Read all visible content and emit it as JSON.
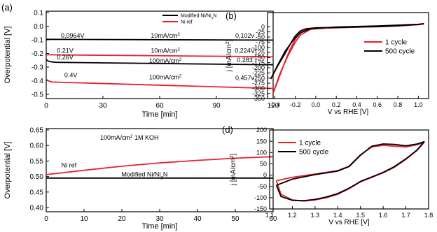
{
  "panel_labels": {
    "a": "(a)",
    "b": "(b)",
    "d": "(d)"
  },
  "chart_data": [
    {
      "panel": "a-top",
      "type": "line",
      "xlabel": "Time [min]",
      "ylabel": "Overpotential [V]",
      "xlim": [
        0,
        120
      ],
      "ylim": [
        -0.5,
        0.1
      ],
      "xticks": [
        "0",
        "30",
        "60",
        "90",
        "120"
      ],
      "yticks": [
        "0.1",
        "0.0",
        "-0.1",
        "-0.2",
        "-0.3",
        "-0.4",
        "-0.5"
      ],
      "legend": {
        "position": "top-right",
        "entries": [
          {
            "name": "Modified Ni/Ni3N",
            "color": "#000000"
          },
          {
            "name": "Ni ref",
            "color": "#e8202a"
          }
        ]
      },
      "series": [
        {
          "name": "Modified Ni/Ni3N",
          "color": "#000000",
          "x": [
            0,
            120
          ],
          "y": [
            -0.0964,
            -0.102
          ]
        },
        {
          "name": "Ni ref",
          "color": "#e8202a",
          "x": [
            0,
            120
          ],
          "y": [
            -0.21,
            -0.224
          ]
        },
        {
          "name": "Modified Ni/Ni3N",
          "color": "#000000",
          "x": [
            0,
            1,
            2,
            5,
            120
          ],
          "y": [
            -0.245,
            -0.255,
            -0.26,
            -0.265,
            -0.283
          ]
        },
        {
          "name": "Ni ref",
          "color": "#e8202a",
          "x": [
            0,
            1,
            3,
            120
          ],
          "y": [
            -0.39,
            -0.4,
            -0.41,
            -0.457
          ]
        }
      ],
      "annotations": [
        {
          "text": "0,0964V",
          "x": 14,
          "y": -0.085
        },
        {
          "text": "10mA/cm2",
          "x": 63,
          "y": -0.085
        },
        {
          "text": "0,102v",
          "x": 105,
          "y": -0.085
        },
        {
          "text": "0.21V",
          "x": 10,
          "y": -0.195
        },
        {
          "text": "10mA/cm2",
          "x": 63,
          "y": -0.195
        },
        {
          "text": "0,224V",
          "x": 105,
          "y": -0.195
        },
        {
          "text": "0.26V",
          "x": 10,
          "y": -0.244
        },
        {
          "text": "100mA/cm2",
          "x": 63,
          "y": -0.268
        },
        {
          "text": "0.283",
          "x": 105,
          "y": -0.265
        },
        {
          "text": "0.4V",
          "x": 13,
          "y": -0.375
        },
        {
          "text": "100mA/cm2",
          "x": 63,
          "y": -0.39
        },
        {
          "text": "0,457v",
          "x": 105,
          "y": -0.395
        }
      ]
    },
    {
      "panel": "a-bottom",
      "type": "line",
      "xlabel": "Time [min]",
      "ylabel": "Overpotential [V]",
      "xlim": [
        0,
        60
      ],
      "ylim": [
        0.4,
        0.65
      ],
      "xticks": [
        "0",
        "10",
        "20",
        "30",
        "40",
        "50",
        "60"
      ],
      "yticks": [
        "0.65",
        "0.60",
        "0.55",
        "0.50",
        "0.45",
        "0.40"
      ],
      "series": [
        {
          "name": "Ni ref",
          "color": "#e8202a",
          "x": [
            0,
            10,
            20,
            30,
            40,
            50,
            60
          ],
          "y": [
            0.506,
            0.52,
            0.533,
            0.544,
            0.552,
            0.559,
            0.564
          ]
        },
        {
          "name": "Modified Ni/Ni3N",
          "color": "#000000",
          "x": [
            0,
            60
          ],
          "y": [
            0.495,
            0.495
          ]
        }
      ],
      "annotations": [
        {
          "text": "100mA/cm2 1M KOH",
          "x": 22,
          "y": 0.618
        },
        {
          "text": "Ni ref",
          "x": 6,
          "y": 0.53
        },
        {
          "text": "Modified Ni/Ni3N",
          "x": 26,
          "y": 0.5
        }
      ]
    },
    {
      "panel": "b",
      "type": "line",
      "xlabel": "V vs RHE [V]",
      "ylabel": "j [mA/cm2]",
      "xlim": [
        -0.45,
        1.1
      ],
      "ylim": [
        -350,
        25
      ],
      "xticks": [
        "-0.4",
        "-0.2",
        "0.0",
        "0.2",
        "0.4",
        "0.6",
        "0.8",
        "1.0"
      ],
      "yticks": [
        "0",
        "-25",
        "-50",
        "-75",
        "-100",
        "-125",
        "-150",
        "-175",
        "-200",
        "-225",
        "-250",
        "-275",
        "-300",
        "-325",
        "-350"
      ],
      "legend": {
        "position": "top-right",
        "entries": [
          {
            "name": "1 cycle",
            "color": "#e8202a"
          },
          {
            "name": "500 cycle",
            "color": "#000000"
          }
        ]
      },
      "series": [
        {
          "name": "1 cycle",
          "color": "#e8202a",
          "x": [
            -0.42,
            -0.36,
            -0.3,
            -0.25,
            -0.2,
            -0.15,
            -0.1,
            0.0,
            0.2,
            0.4,
            0.6,
            0.8,
            1.0,
            1.05,
            1.0,
            0.6,
            0.2,
            -0.05,
            -0.15,
            -0.2,
            -0.27,
            -0.35,
            -0.42
          ],
          "y": [
            -330,
            -250,
            -170,
            -110,
            -60,
            -28,
            -14,
            -8,
            -5,
            -2,
            0,
            4,
            10,
            13,
            10,
            2,
            -3,
            -12,
            -40,
            -75,
            -140,
            -230,
            -330
          ]
        },
        {
          "name": "500 cycle",
          "color": "#000000",
          "x": [
            -0.44,
            -0.37,
            -0.3,
            -0.25,
            -0.2,
            -0.15,
            -0.1,
            0.0,
            0.2,
            0.4,
            0.6,
            0.8,
            1.0,
            1.05,
            1.0,
            0.6,
            0.2,
            -0.05,
            -0.15,
            -0.22,
            -0.3,
            -0.38,
            -0.44
          ],
          "y": [
            -255,
            -190,
            -130,
            -85,
            -45,
            -20,
            -10,
            -5,
            -3,
            -1,
            1,
            5,
            12,
            15,
            12,
            4,
            -1,
            -9,
            -30,
            -65,
            -120,
            -195,
            -255
          ]
        }
      ]
    },
    {
      "panel": "d",
      "type": "line",
      "xlabel": "V vs RHE [V]",
      "ylabel": "j [mA/cm2]",
      "xlim": [
        1.1,
        1.8
      ],
      "ylim": [
        -150,
        200
      ],
      "xticks": [
        "1.1",
        "1.2",
        "1.3",
        "1.4",
        "1.5",
        "1.6",
        "1.7",
        "1.8"
      ],
      "yticks": [
        "200",
        "150",
        "100",
        "50",
        "0",
        "-50",
        "-100",
        "-150"
      ],
      "legend": {
        "position": "top-left",
        "entries": [
          {
            "name": "1 cycle",
            "color": "#e8202a"
          },
          {
            "name": "500 cycle",
            "color": "#000000"
          }
        ]
      },
      "series": [
        {
          "name": "1 cycle",
          "color": "#e8202a",
          "x": [
            1.13,
            1.2,
            1.3,
            1.4,
            1.45,
            1.5,
            1.55,
            1.6,
            1.65,
            1.7,
            1.75,
            1.78,
            1.75,
            1.7,
            1.65,
            1.6,
            1.55,
            1.5,
            1.45,
            1.4,
            1.35,
            1.3,
            1.25,
            1.2,
            1.15,
            1.13
          ],
          "y": [
            -25,
            -10,
            5,
            20,
            40,
            90,
            125,
            132,
            128,
            125,
            135,
            145,
            110,
            70,
            35,
            10,
            -10,
            -30,
            -60,
            -85,
            -100,
            -110,
            -115,
            -110,
            -85,
            -25
          ]
        },
        {
          "name": "500 cycle",
          "color": "#000000",
          "x": [
            1.13,
            1.2,
            1.3,
            1.4,
            1.45,
            1.5,
            1.55,
            1.6,
            1.65,
            1.7,
            1.75,
            1.78,
            1.75,
            1.7,
            1.65,
            1.6,
            1.55,
            1.5,
            1.45,
            1.4,
            1.35,
            1.3,
            1.25,
            1.2,
            1.15,
            1.13
          ],
          "y": [
            -45,
            -18,
            2,
            18,
            38,
            88,
            128,
            138,
            136,
            130,
            138,
            148,
            112,
            72,
            38,
            12,
            -8,
            -28,
            -58,
            -82,
            -97,
            -108,
            -113,
            -112,
            -95,
            -45
          ]
        }
      ]
    }
  ]
}
